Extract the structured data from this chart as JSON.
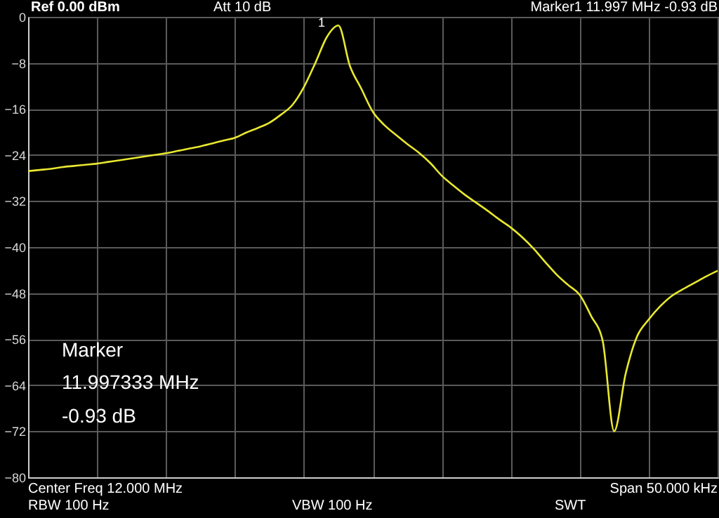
{
  "chart_data": {
    "type": "line",
    "categories": [
      null,
      null,
      null,
      null,
      null,
      null,
      null,
      null,
      null,
      null,
      null,
      null,
      null,
      null,
      null,
      null,
      null,
      null,
      null,
      null,
      null,
      null,
      null,
      null,
      null,
      null,
      null,
      null,
      null,
      null,
      null,
      null,
      null,
      null,
      null,
      null,
      null,
      null,
      null,
      null,
      null,
      null,
      null,
      null,
      null,
      null,
      null,
      null,
      null,
      null,
      null,
      null,
      null,
      null,
      null,
      null,
      null,
      null,
      null,
      null,
      null
    ],
    "series": [
      {
        "color": "#e8e830",
        "values": [
          -26.8,
          -26.6,
          -26.4,
          -26.1,
          -25.9,
          -25.7,
          -25.5,
          -25.2,
          -24.9,
          -24.6,
          -24.3,
          -24.0,
          -23.7,
          -23.3,
          -22.9,
          -22.5,
          -22.0,
          -21.5,
          -21.0,
          -20.1,
          -19.3,
          -18.4,
          -17.0,
          -15.3,
          -12.2,
          -8.0,
          -3.5,
          -1.5,
          -8.5,
          -12.5,
          -16.5,
          -18.8,
          -20.5,
          -22.1,
          -23.6,
          -25.4,
          -27.6,
          -29.3,
          -30.9,
          -32.3,
          -33.7,
          -35.2,
          -36.6,
          -38.3,
          -40.3,
          -42.6,
          -44.8,
          -46.6,
          -48.3,
          -52.0,
          -56.3,
          -72.0,
          -62.0,
          -55.5,
          -52.6,
          -50.3,
          -48.5,
          -47.3,
          -46.2,
          -45.1,
          -44.1
        ]
      }
    ],
    "ylim": [
      -80,
      0
    ],
    "yticks": [
      0,
      -8,
      -16,
      -24,
      -32,
      -40,
      -48,
      -56,
      -64,
      -72,
      -80
    ],
    "grid": true,
    "line_style": "solid",
    "annotations": [
      "Ref 0.00 dBm",
      "Att    10 dB",
      "Marker1   11.997 MHz   -0.93 dB",
      "1",
      "Marker",
      "11.997333 MHz",
      "-0.93 dB",
      "Center Freq     12.000 MHz",
      "Span              50.000 kHz",
      "RBW                100 Hz",
      "VBW          100 Hz",
      "SWT"
    ]
  }
}
